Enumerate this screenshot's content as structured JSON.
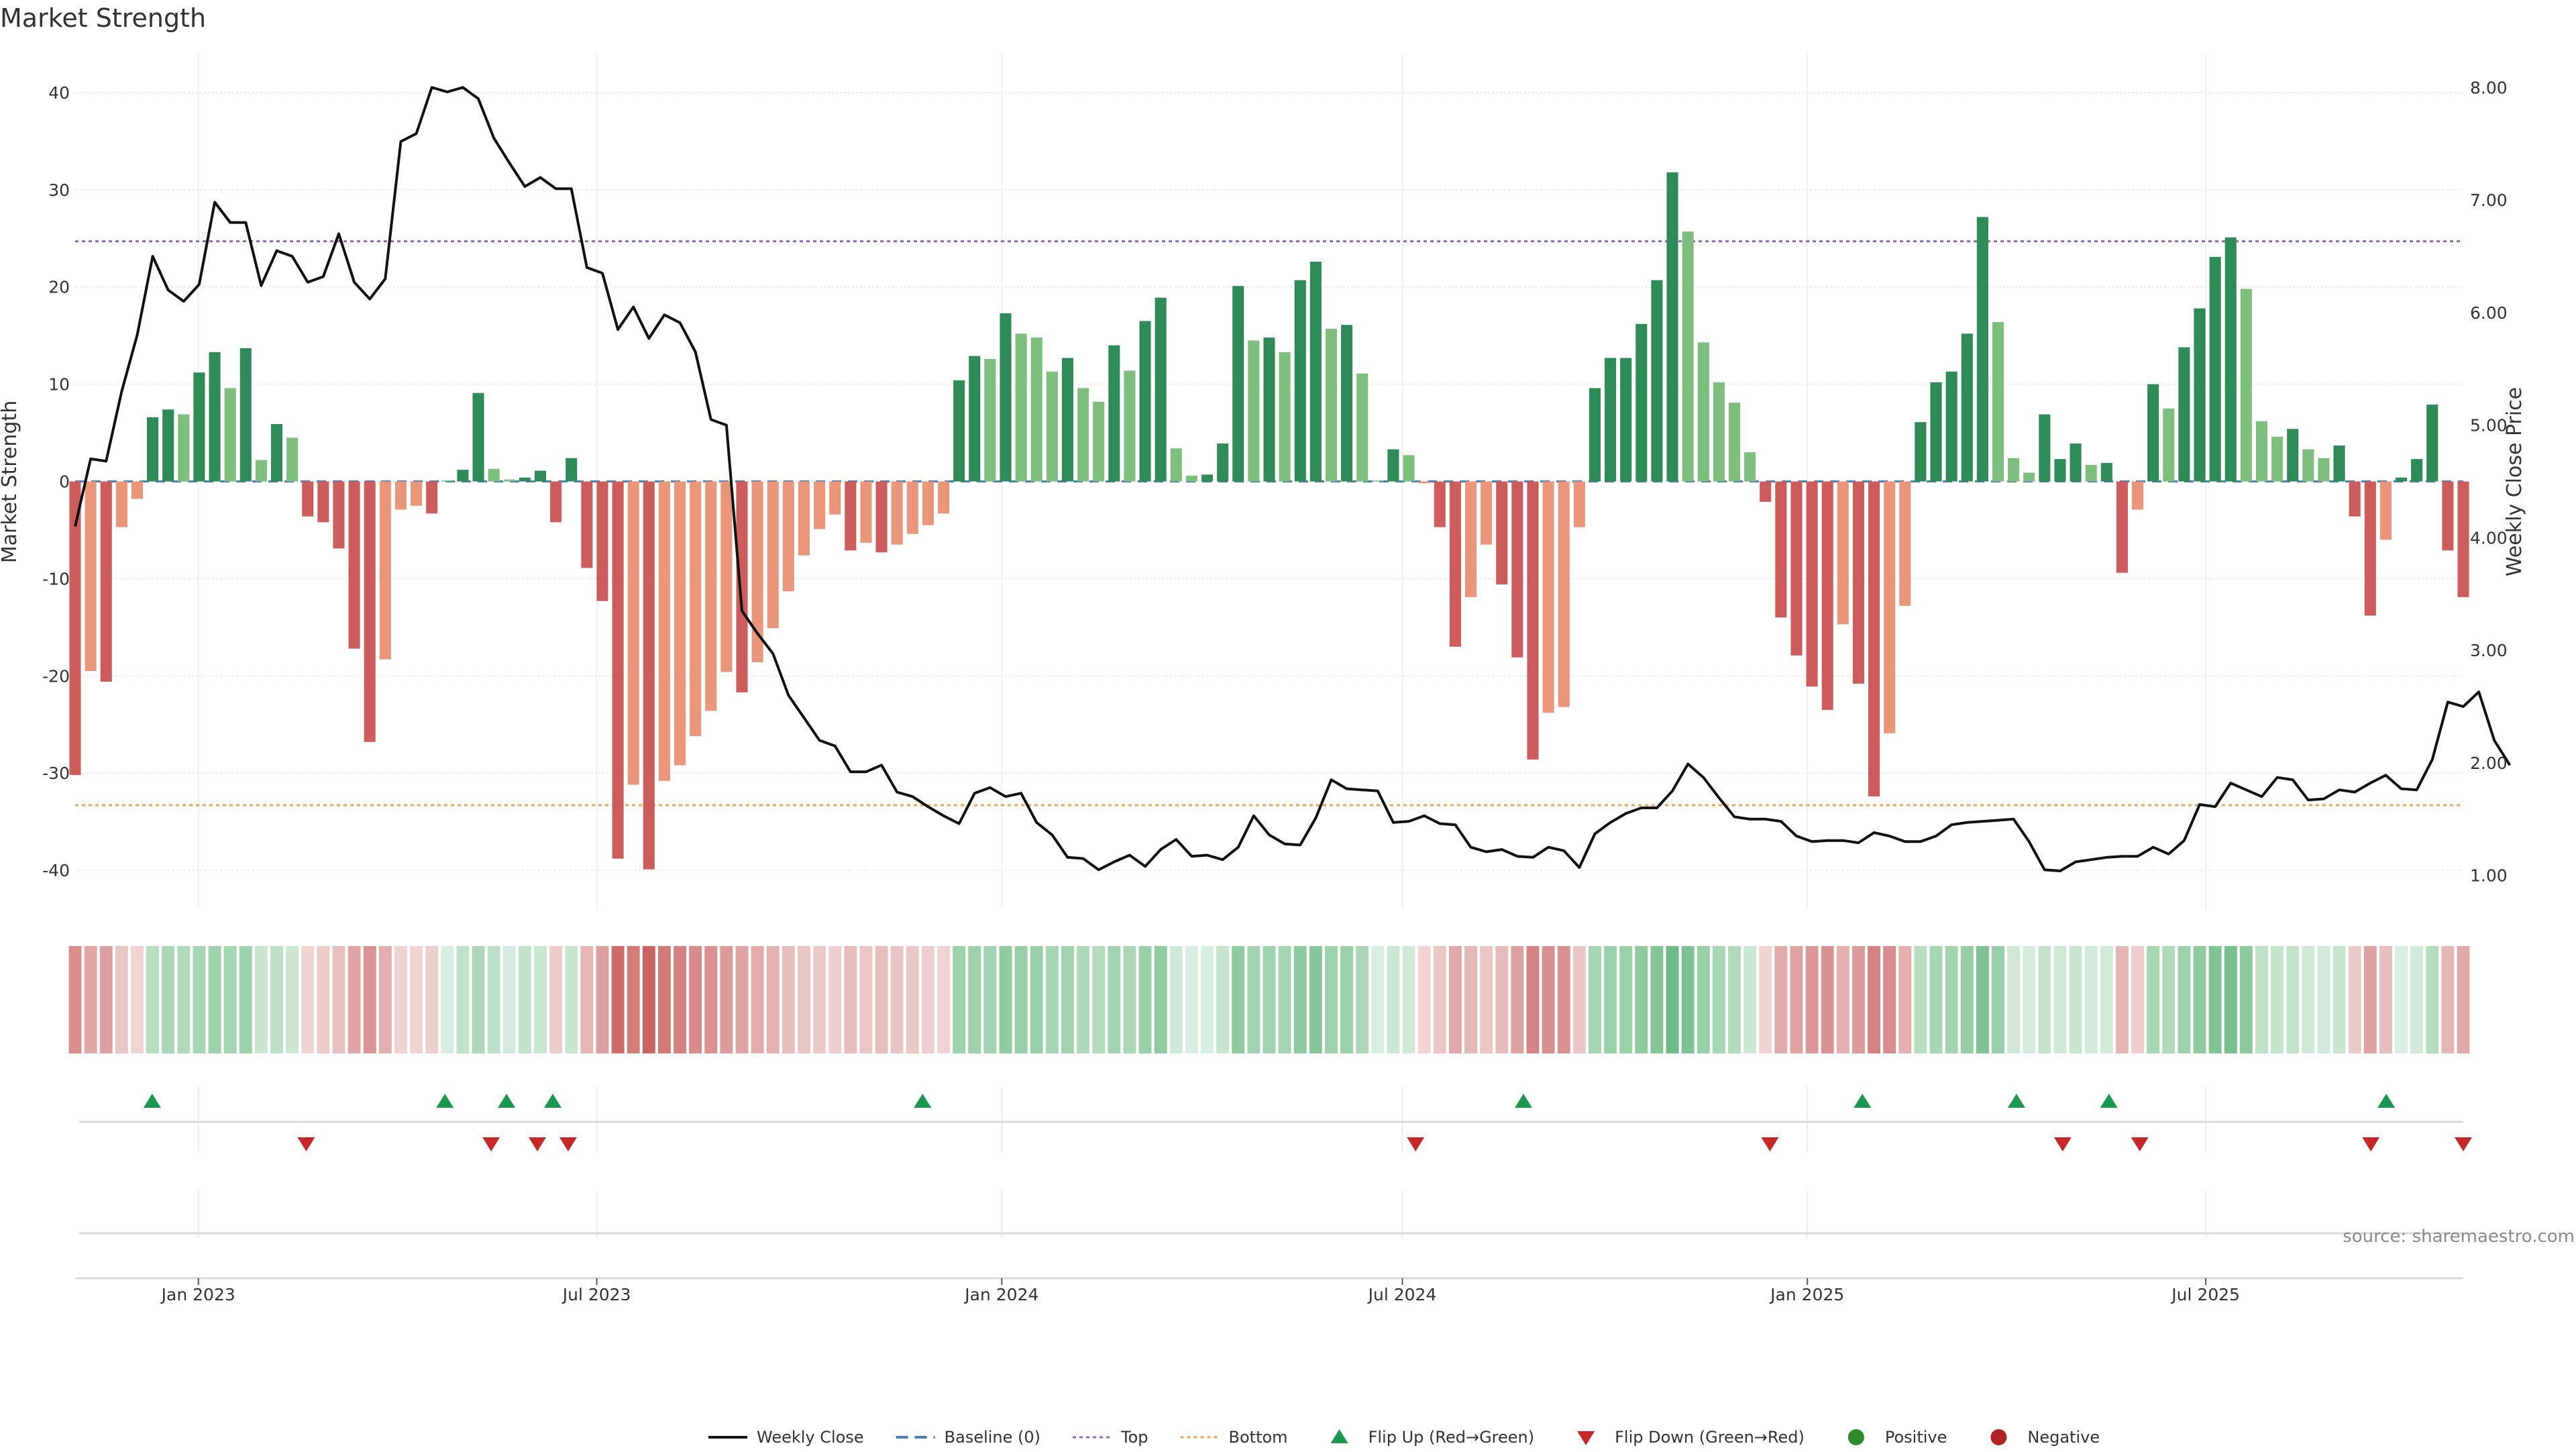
{
  "chart_data": {
    "type": "bar",
    "title": "Market Strength",
    "ylabel": "Market Strength",
    "y2label": "Weekly Close Price",
    "ylim": [
      -44,
      44
    ],
    "y2lim": [
      0.7,
      8.3
    ],
    "yticks": [
      40,
      30,
      20,
      10,
      0,
      -10,
      -20,
      -30,
      -40
    ],
    "y2ticks": [
      "8.00",
      "7.00",
      "6.00",
      "5.00",
      "4.00",
      "3.00",
      "2.00",
      "1.00"
    ],
    "top_line": 24.7,
    "bottom_line": -33.3,
    "x_start": "2022-11-06",
    "x_end": "2025-10-26",
    "xticks": [
      {
        "date": "2023-01-01",
        "label": "Jan 2023"
      },
      {
        "date": "2023-07-01",
        "label": "Jul 2023"
      },
      {
        "date": "2024-01-01",
        "label": "Jan 2024"
      },
      {
        "date": "2024-07-01",
        "label": "Jul 2024"
      },
      {
        "date": "2025-01-01",
        "label": "Jan 2025"
      },
      {
        "date": "2025-07-01",
        "label": "Jul 2025"
      }
    ],
    "grid": true,
    "legend_position": "bottom",
    "strength": [
      -30.2,
      -19.5,
      -20.6,
      -4.7,
      -1.8,
      6.6,
      7.4,
      6.9,
      11.2,
      13.3,
      9.6,
      13.7,
      2.2,
      5.9,
      4.5,
      -3.6,
      -4.2,
      -6.9,
      -17.2,
      -26.8,
      -18.3,
      -2.9,
      -2.5,
      -3.3,
      0.1,
      1.2,
      9.1,
      1.3,
      0.2,
      0.4,
      1.1,
      -4.2,
      2.4,
      -8.9,
      -12.3,
      -38.8,
      -31.2,
      -39.9,
      -30.8,
      -29.2,
      -26.2,
      -23.6,
      -19.6,
      -21.7,
      -18.6,
      -15.1,
      -11.3,
      -7.6,
      -4.9,
      -3.4,
      -7.1,
      -6.3,
      -7.3,
      -6.5,
      -5.4,
      -4.5,
      -3.3,
      10.4,
      12.9,
      12.6,
      17.3,
      15.2,
      14.8,
      11.3,
      12.7,
      9.6,
      8.2,
      14.0,
      11.4,
      16.5,
      18.9,
      3.4,
      0.6,
      0.7,
      3.9,
      20.1,
      14.5,
      14.8,
      13.3,
      20.7,
      22.6,
      15.7,
      16.1,
      11.1,
      0.1,
      3.3,
      2.7,
      -0.2,
      -4.7,
      -17.0,
      -11.9,
      -6.5,
      -10.6,
      -18.1,
      -28.6,
      -23.8,
      -23.2,
      -4.7,
      9.6,
      12.7,
      12.7,
      16.2,
      20.7,
      31.8,
      25.7,
      14.3,
      10.2,
      8.1,
      3.0,
      -2.1,
      -14.0,
      -17.9,
      -21.1,
      -23.5,
      -14.7,
      -20.8,
      -32.4,
      -25.9,
      -12.8,
      6.1,
      10.2,
      11.3,
      15.2,
      27.2,
      16.4,
      2.4,
      0.9,
      6.9,
      2.3,
      3.9,
      1.7,
      1.9,
      -9.4,
      -2.9,
      10.0,
      7.5,
      13.8,
      17.8,
      23.1,
      25.1,
      19.8,
      6.2,
      4.6,
      5.4,
      3.3,
      2.4,
      3.7,
      -3.6,
      -13.8,
      -6.0,
      0.4,
      2.3,
      7.9,
      -7.1,
      -11.9
    ],
    "strength_colors": [
      "#cd5c5c",
      "#e9967a",
      "#cd5c5c",
      "#e9967a",
      "#e9967a",
      "#2e8b57",
      "#2e8b57",
      "#7ebf7e",
      "#2e8b57",
      "#2e8b57",
      "#7ebf7e",
      "#2e8b57",
      "#7ebf7e",
      "#2e8b57",
      "#7ebf7e",
      "#cd5c5c",
      "#cd5c5c",
      "#cd5c5c",
      "#cd5c5c",
      "#cd5c5c",
      "#e9967a",
      "#e9967a",
      "#e9967a",
      "#cd5c5c",
      "#7ebf7e",
      "#2e8b57",
      "#2e8b57",
      "#7ebf7e",
      "#7ebf7e",
      "#2e8b57",
      "#2e8b57",
      "#cd5c5c",
      "#2e8b57",
      "#cd5c5c",
      "#cd5c5c",
      "#cd5c5c",
      "#e9967a",
      "#cd5c5c",
      "#e9967a",
      "#e9967a",
      "#e9967a",
      "#e9967a",
      "#e9967a",
      "#cd5c5c",
      "#e9967a",
      "#e9967a",
      "#e9967a",
      "#e9967a",
      "#e9967a",
      "#e9967a",
      "#cd5c5c",
      "#e9967a",
      "#cd5c5c",
      "#e9967a",
      "#e9967a",
      "#e9967a",
      "#e9967a",
      "#2e8b57",
      "#2e8b57",
      "#7ebf7e",
      "#2e8b57",
      "#7ebf7e",
      "#7ebf7e",
      "#7ebf7e",
      "#2e8b57",
      "#7ebf7e",
      "#7ebf7e",
      "#2e8b57",
      "#7ebf7e",
      "#2e8b57",
      "#2e8b57",
      "#7ebf7e",
      "#7ebf7e",
      "#2e8b57",
      "#2e8b57",
      "#2e8b57",
      "#7ebf7e",
      "#2e8b57",
      "#7ebf7e",
      "#2e8b57",
      "#2e8b57",
      "#7ebf7e",
      "#2e8b57",
      "#7ebf7e",
      "#7ebf7e",
      "#2e8b57",
      "#7ebf7e",
      "#e9967a",
      "#cd5c5c",
      "#cd5c5c",
      "#e9967a",
      "#e9967a",
      "#cd5c5c",
      "#cd5c5c",
      "#cd5c5c",
      "#e9967a",
      "#e9967a",
      "#e9967a",
      "#2e8b57",
      "#2e8b57",
      "#2e8b57",
      "#2e8b57",
      "#2e8b57",
      "#2e8b57",
      "#7ebf7e",
      "#7ebf7e",
      "#7ebf7e",
      "#7ebf7e",
      "#7ebf7e",
      "#cd5c5c",
      "#cd5c5c",
      "#cd5c5c",
      "#cd5c5c",
      "#cd5c5c",
      "#e9967a",
      "#cd5c5c",
      "#cd5c5c",
      "#e9967a",
      "#e9967a",
      "#2e8b57",
      "#2e8b57",
      "#2e8b57",
      "#2e8b57",
      "#2e8b57",
      "#7ebf7e",
      "#7ebf7e",
      "#7ebf7e",
      "#2e8b57",
      "#2e8b57",
      "#2e8b57",
      "#7ebf7e",
      "#2e8b57",
      "#cd5c5c",
      "#e9967a",
      "#2e8b57",
      "#7ebf7e",
      "#2e8b57",
      "#2e8b57",
      "#2e8b57",
      "#2e8b57",
      "#7ebf7e",
      "#7ebf7e",
      "#7ebf7e",
      "#2e8b57",
      "#7ebf7e",
      "#7ebf7e",
      "#2e8b57",
      "#cd5c5c",
      "#cd5c5c",
      "#e9967a",
      "#2e8b57",
      "#2e8b57",
      "#2e8b57",
      "#cd5c5c",
      "#cd5c5c"
    ],
    "weekly_close": [
      4.1,
      4.7,
      4.68,
      5.3,
      5.8,
      6.5,
      6.2,
      6.1,
      6.25,
      6.98,
      6.8,
      6.8,
      6.24,
      6.55,
      6.5,
      6.27,
      6.32,
      6.7,
      6.27,
      6.12,
      6.3,
      7.52,
      7.59,
      8.0,
      7.96,
      8.0,
      7.9,
      7.55,
      7.33,
      7.12,
      7.2,
      7.1,
      7.1,
      6.4,
      6.35,
      5.85,
      6.05,
      5.77,
      5.98,
      5.91,
      5.65,
      5.05,
      5.0,
      3.35,
      3.15,
      2.97,
      2.6,
      2.4,
      2.2,
      2.15,
      1.92,
      1.92,
      1.98,
      1.74,
      1.7,
      1.61,
      1.53,
      1.46,
      1.73,
      1.78,
      1.7,
      1.73,
      1.47,
      1.36,
      1.16,
      1.15,
      1.05,
      1.12,
      1.18,
      1.08,
      1.23,
      1.32,
      1.17,
      1.18,
      1.14,
      1.25,
      1.53,
      1.36,
      1.28,
      1.27,
      1.51,
      1.85,
      1.77,
      1.76,
      1.75,
      1.47,
      1.48,
      1.53,
      1.46,
      1.45,
      1.25,
      1.21,
      1.23,
      1.17,
      1.16,
      1.25,
      1.22,
      1.07,
      1.37,
      1.47,
      1.55,
      1.6,
      1.6,
      1.75,
      1.99,
      1.87,
      1.69,
      1.52,
      1.5,
      1.5,
      1.48,
      1.35,
      1.3,
      1.31,
      1.31,
      1.29,
      1.38,
      1.35,
      1.3,
      1.3,
      1.35,
      1.45,
      1.47,
      1.48,
      1.49,
      1.5,
      1.3,
      1.05,
      1.04,
      1.12,
      1.14,
      1.16,
      1.17,
      1.17,
      1.25,
      1.19,
      1.31,
      1.63,
      1.61,
      1.82,
      1.76,
      1.7,
      1.87,
      1.85,
      1.67,
      1.68,
      1.76,
      1.74,
      1.82,
      1.89,
      1.77,
      1.76,
      2.03,
      2.54,
      2.5,
      2.63,
      2.2,
      1.98
    ],
    "heat_colors": [
      "#d88f8f",
      "#e0a7a7",
      "#dca0a0",
      "#ebc8c8",
      "#f0d4d4",
      "#b9dfc3",
      "#aad7b7",
      "#b0dabb",
      "#a7d6b4",
      "#9ed2ad",
      "#a5d6b3",
      "#9ed2ad",
      "#c8e6d0",
      "#bde0c6",
      "#cce7d4",
      "#f0d4d4",
      "#edcccc",
      "#e8c0c0",
      "#dfa5a5",
      "#d99595",
      "#e2aeae",
      "#efd2d2",
      "#f0d4d4",
      "#eecfcf",
      "#d6ede0",
      "#c1e2ca",
      "#aed8ba",
      "#c0e1c9",
      "#d3eadc",
      "#c2e2cb",
      "#c9e6d1",
      "#edcccc",
      "#c7e5cf",
      "#e5b7b7",
      "#dda0a0",
      "#cc6c6c",
      "#d27c7c",
      "#c96464",
      "#d17a7a",
      "#d48282",
      "#d88c8c",
      "#da9292",
      "#dc9b9b",
      "#e0a4a4",
      "#e3abab",
      "#e5b2b2",
      "#e9bebe",
      "#ebc5c5",
      "#eccaca",
      "#eecfcf",
      "#e7bdbd",
      "#ebc7c7",
      "#e8bfbf",
      "#eac4c4",
      "#ecc9c9",
      "#eecfcf",
      "#f0d4d4",
      "#9dd2ac",
      "#9cd1ab",
      "#a2d4b1",
      "#8fcb9f",
      "#98cfa8",
      "#9ad0a9",
      "#a7d6b4",
      "#a2d4b0",
      "#afd9bb",
      "#b5dcbf",
      "#a3d4b1",
      "#acd8b8",
      "#99d0a9",
      "#90cba0",
      "#cde8d5",
      "#d8eee1",
      "#d8eee1",
      "#c6e4ce",
      "#8fcb9f",
      "#a3d4b1",
      "#a0d3af",
      "#a5d5b3",
      "#8ccaa0",
      "#85c69a",
      "#9dd2ac",
      "#9bd1aa",
      "#acd8b8",
      "#d8eee1",
      "#cce7d4",
      "#d0e9d7",
      "#f0d4d4",
      "#ebc7c7",
      "#e0a8a8",
      "#e6b9b9",
      "#ebc7c7",
      "#e7bcbc",
      "#dda1a1",
      "#d48484",
      "#d88f8f",
      "#d99292",
      "#ebc7c7",
      "#a5d5b3",
      "#9bd1aa",
      "#9bd1aa",
      "#90cba0",
      "#84c598",
      "#6ebb87",
      "#7fc395",
      "#98cfa8",
      "#a8d7b5",
      "#b2dbbd",
      "#cce7d4",
      "#f0d4d4",
      "#e2abab",
      "#deA3A3",
      "#db9797",
      "#d99191",
      "#e3afaf",
      "#dc9a9a",
      "#d48282",
      "#d88e8e",
      "#e4b1b1",
      "#b9dfc3",
      "#a6d6b3",
      "#a2d4b0",
      "#95ceA5",
      "#7fc395",
      "#98cfa8",
      "#cfe8d6",
      "#d5ecdd",
      "#c3e3cb",
      "#cde8d5",
      "#c8e5cf",
      "#d2eadb",
      "#d1e9d9",
      "#e5b6b6",
      "#eecfcf",
      "#a7d6b4",
      "#b0dabb",
      "#9dd2ac",
      "#8fcb9f",
      "#7ec494",
      "#78c08f",
      "#8dc99f",
      "#c1e2ca",
      "#c5e4cd",
      "#c3e3cb",
      "#cde8d5",
      "#d1e9d9",
      "#c8e5cf",
      "#eccaca",
      "#dea2a2",
      "#e8bfbf",
      "#d8eee1",
      "#d1e9d9",
      "#b6ddc0",
      "#e5b8b8",
      "#e0a9a9"
    ],
    "flip_up": [
      "2022-12-11",
      "2023-04-23",
      "2023-05-21",
      "2023-06-11",
      "2023-11-26",
      "2024-08-25",
      "2025-01-26",
      "2025-04-06",
      "2025-05-18",
      "2025-09-21"
    ],
    "flip_down": [
      "2023-02-19",
      "2023-05-14",
      "2023-06-04",
      "2023-06-18",
      "2024-07-07",
      "2024-12-15",
      "2025-04-27",
      "2025-06-01",
      "2025-09-14",
      "2025-10-26"
    ],
    "legend": [
      {
        "key": "weekly_close",
        "label": "Weekly Close"
      },
      {
        "key": "baseline",
        "label": "Baseline (0)"
      },
      {
        "key": "top",
        "label": "Top"
      },
      {
        "key": "bottom",
        "label": "Bottom"
      },
      {
        "key": "flip_up",
        "label": "Flip Up (Red→Green)"
      },
      {
        "key": "flip_down",
        "label": "Flip Down (Green→Red)"
      },
      {
        "key": "positive",
        "label": "Positive"
      },
      {
        "key": "negative",
        "label": "Negative"
      }
    ],
    "source": "source: sharemaestro.com",
    "colors": {
      "strong_positive": "#2e8b57",
      "weak_positive": "#7ebf7e",
      "strong_negative": "#cd5c5c",
      "weak_negative": "#e9967a",
      "price_line": "#111111",
      "baseline": "#4a7fb0",
      "top_line": "#9467bd",
      "bottom_line": "#f0a050",
      "flip_up": "#1a9850",
      "flip_down": "#c62828",
      "positive_dot": "#2e8b2e",
      "negative_dot": "#b22222"
    }
  }
}
